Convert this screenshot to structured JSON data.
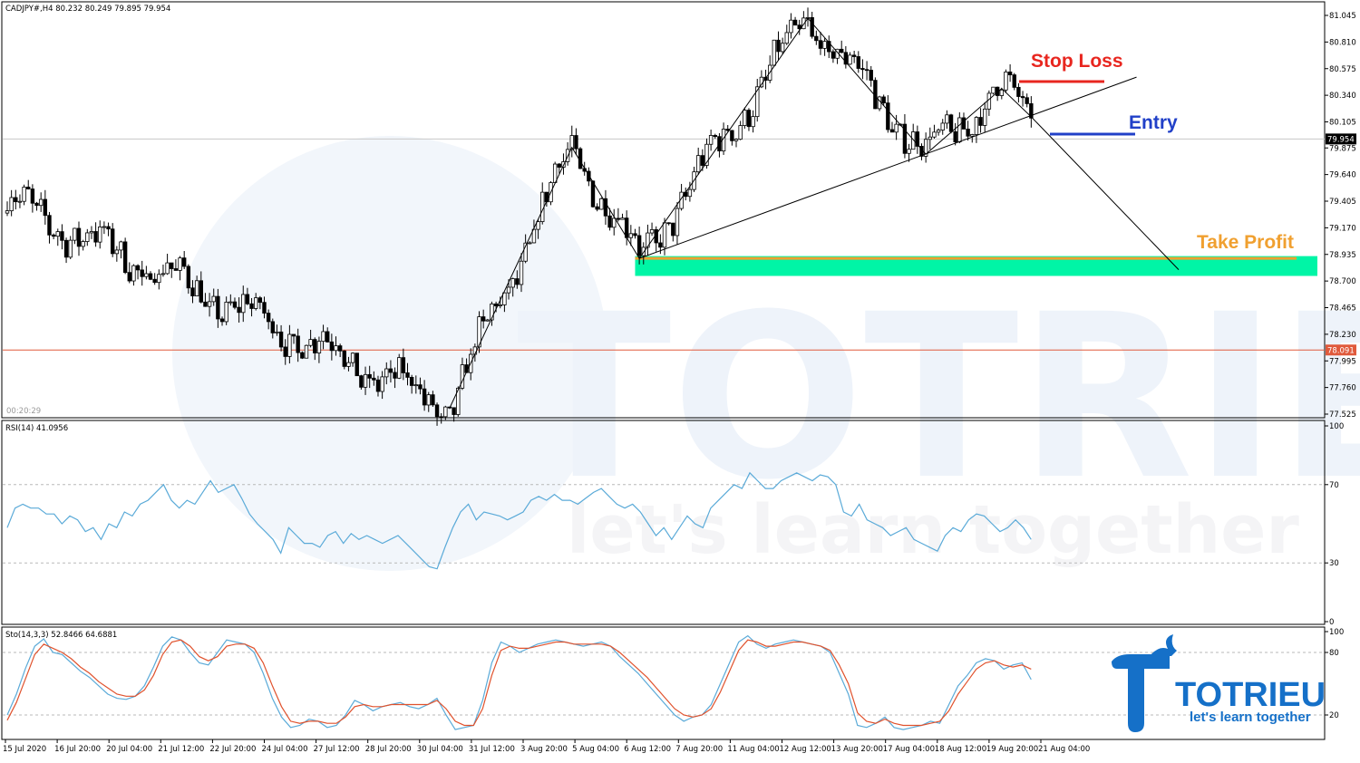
{
  "chart_data": [
    {
      "type": "candlestick",
      "header": "CADJPY#,H4 80.232 80.249 79.895 79.954",
      "timer": "00:20:29",
      "price_axis_ticks": [
        "81.045",
        "80.810",
        "80.575",
        "80.340",
        "80.105",
        "79.875",
        "79.640",
        "79.405",
        "79.170",
        "78.935",
        "78.700",
        "78.465",
        "78.230",
        "77.995",
        "77.760",
        "77.525"
      ],
      "ylim": [
        77.525,
        81.045
      ],
      "current_price": 79.954,
      "current_price_label": "79.954",
      "level_line": 78.091,
      "level_line_label": "78.091",
      "annotations": {
        "stop_loss": {
          "label": "Stop Loss",
          "price": 80.45
        },
        "entry": {
          "label": "Entry",
          "price": 79.99
        },
        "take_profit": {
          "label": "Take Profit",
          "price": 78.9
        },
        "take_profit_zone": [
          78.745,
          78.92
        ]
      },
      "zigzag": [
        {
          "bar": 0,
          "price": 79.4
        },
        {
          "bar": 105,
          "price": 77.58
        },
        {
          "bar": 134,
          "price": 79.88
        },
        {
          "bar": 150,
          "price": 78.9
        },
        {
          "bar": 190,
          "price": 81.02
        },
        {
          "bar": 218,
          "price": 79.82
        },
        {
          "bar": 236,
          "price": 80.4
        },
        {
          "bar": 243,
          "price": 80.15
        },
        {
          "bar": 278,
          "price": 78.8
        }
      ],
      "trendline": {
        "start": {
          "bar": 150,
          "price": 78.9
        },
        "end": {
          "bar": 268,
          "price": 80.5
        }
      },
      "x_ticks": [
        "15 Jul 2020",
        "16 Jul 20:00",
        "20 Jul 04:00",
        "21 Jul 12:00",
        "22 Jul 20:00",
        "24 Jul 04:00",
        "27 Jul 12:00",
        "28 Jul 20:00",
        "30 Jul 04:00",
        "31 Jul 12:00",
        "3 Aug 20:00",
        "5 Aug 04:00",
        "6 Aug 12:00",
        "7 Aug 20:00",
        "11 Aug 04:00",
        "12 Aug 12:00",
        "13 Aug 20:00",
        "17 Aug 04:00",
        "18 Aug 12:00",
        "19 Aug 20:00",
        "21 Aug 04:00"
      ]
    },
    {
      "type": "line",
      "header": "RSI(14) 41.0956",
      "ylim": [
        0,
        100
      ],
      "y_ticks": [
        "100",
        "70",
        "30",
        "0"
      ],
      "levels": [
        70,
        30
      ],
      "series": [
        {
          "values": [
            48,
            58,
            60,
            58,
            58,
            55,
            55,
            50,
            54,
            52,
            46,
            48,
            42,
            50,
            48,
            56,
            54,
            60,
            62,
            66,
            70,
            62,
            58,
            62,
            60,
            66,
            72,
            66,
            68,
            70,
            63,
            55,
            50,
            46,
            42,
            35,
            48,
            44,
            40,
            40,
            38,
            44,
            46,
            40,
            45,
            42,
            44,
            42,
            40,
            42,
            44,
            40,
            36,
            32,
            28,
            27,
            38,
            48,
            56,
            60,
            52,
            56,
            55,
            54,
            52,
            54,
            56,
            62,
            64,
            62,
            65,
            62,
            62,
            60,
            63,
            66,
            68,
            64,
            60,
            58,
            60,
            56,
            50,
            44,
            48,
            42,
            48,
            54,
            50,
            48,
            58,
            62,
            66,
            70,
            68,
            76,
            72,
            68,
            68,
            72,
            74,
            76,
            74,
            72,
            75,
            74,
            70,
            56,
            54,
            60,
            52,
            50,
            48,
            44,
            46,
            48,
            42,
            40,
            38,
            36,
            44,
            48,
            46,
            52,
            55,
            54,
            50,
            46,
            48,
            52,
            48,
            42
          ],
          "color": "#5aaad8"
        }
      ]
    },
    {
      "type": "line",
      "header": "Sto(14,3,3) 52.8466 64.6881",
      "ylim": [
        0,
        100
      ],
      "y_ticks": [
        "100",
        "80",
        "20"
      ],
      "levels": [
        80,
        20
      ],
      "series": [
        {
          "values": [
            20,
            40,
            65,
            86,
            93,
            80,
            78,
            70,
            62,
            56,
            48,
            40,
            36,
            35,
            38,
            48,
            66,
            86,
            95,
            92,
            80,
            70,
            68,
            80,
            92,
            90,
            88,
            80,
            60,
            36,
            18,
            8,
            10,
            16,
            14,
            8,
            10,
            20,
            34,
            30,
            24,
            28,
            30,
            32,
            28,
            26,
            30,
            36,
            20,
            6,
            8,
            10,
            34,
            70,
            90,
            86,
            80,
            84,
            88,
            90,
            92,
            90,
            88,
            86,
            88,
            90,
            86,
            76,
            68,
            60,
            50,
            40,
            30,
            20,
            14,
            18,
            20,
            30,
            50,
            70,
            90,
            96,
            88,
            84,
            88,
            90,
            92,
            90,
            88,
            86,
            80,
            60,
            40,
            10,
            8,
            12,
            18,
            8,
            6,
            8,
            10,
            14,
            12,
            30,
            48,
            58,
            70,
            74,
            72,
            64,
            68,
            70,
            54
          ],
          "color": "#5aaad8"
        },
        {
          "values": [
            15,
            32,
            55,
            78,
            88,
            84,
            80,
            74,
            66,
            60,
            52,
            46,
            40,
            38,
            38,
            44,
            58,
            78,
            90,
            92,
            86,
            76,
            72,
            76,
            86,
            88,
            88,
            84,
            70,
            48,
            28,
            14,
            12,
            14,
            14,
            12,
            12,
            18,
            28,
            30,
            28,
            28,
            30,
            30,
            30,
            30,
            30,
            34,
            26,
            14,
            10,
            10,
            26,
            58,
            82,
            86,
            84,
            84,
            86,
            88,
            90,
            90,
            88,
            88,
            88,
            88,
            86,
            80,
            72,
            64,
            56,
            46,
            36,
            26,
            20,
            18,
            20,
            26,
            42,
            62,
            82,
            92,
            90,
            86,
            86,
            88,
            90,
            90,
            88,
            86,
            82,
            68,
            50,
            22,
            14,
            12,
            16,
            12,
            10,
            10,
            10,
            12,
            14,
            24,
            40,
            52,
            64,
            70,
            72,
            68,
            66,
            68,
            64
          ],
          "color": "#e0522d"
        }
      ]
    }
  ],
  "watermark": {
    "brand": "TOTRIEU",
    "tagline": "let's learn together"
  },
  "logo": {
    "brand": "TOTRIEU",
    "tagline": "let's learn together"
  },
  "colors": {
    "bg": "#ffffff",
    "stop_loss": "#e8261f",
    "entry": "#2140c8",
    "take_profit": "#f0a030",
    "zone": "#00f5a6",
    "level_line": "#e05a3c",
    "rsi": "#5aaad8",
    "sto_main": "#5aaad8",
    "sto_signal": "#e0522d",
    "brand_blue": "#1570c8"
  }
}
